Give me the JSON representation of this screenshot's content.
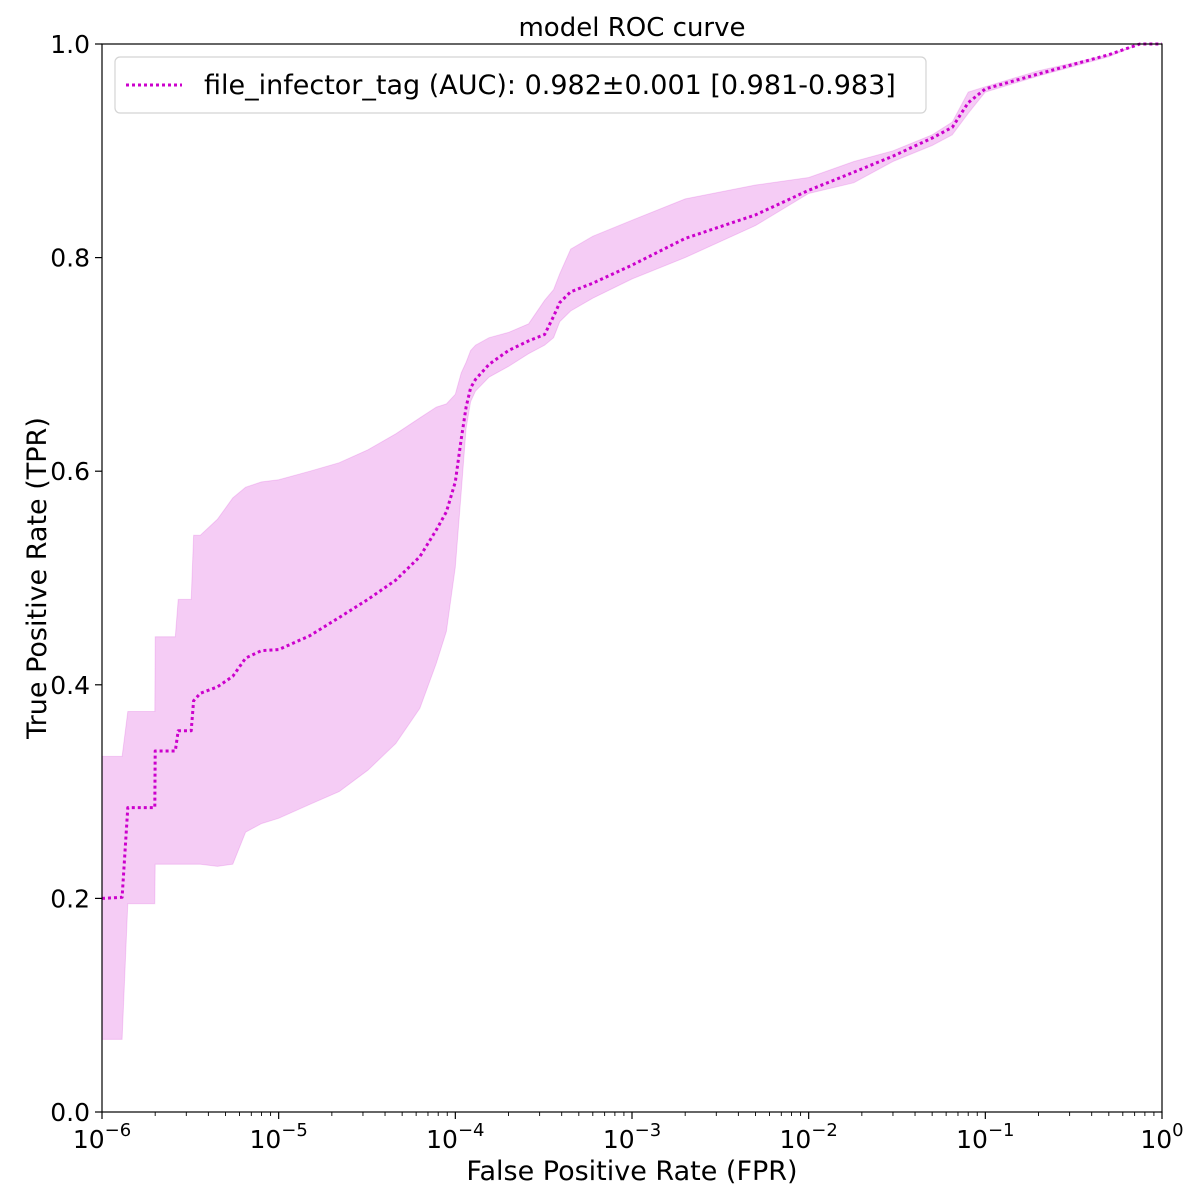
{
  "chart_data": {
    "type": "line",
    "title": "model ROC curve",
    "xlabel": "False Positive Rate (FPR)",
    "ylabel": "True Positive Rate (TPR)",
    "xscale": "log",
    "xlim": [
      1e-06,
      1
    ],
    "ylim": [
      0,
      1
    ],
    "grid": false,
    "legend_position": "upper-left",
    "x_ticks": [
      {
        "value": 1e-06,
        "base": "10",
        "exp": "−6"
      },
      {
        "value": 1e-05,
        "base": "10",
        "exp": "−5"
      },
      {
        "value": 0.0001,
        "base": "10",
        "exp": "−4"
      },
      {
        "value": 0.001,
        "base": "10",
        "exp": "−3"
      },
      {
        "value": 0.01,
        "base": "10",
        "exp": "−2"
      },
      {
        "value": 0.1,
        "base": "10",
        "exp": "−1"
      },
      {
        "value": 1,
        "base": "10",
        "exp": "0"
      }
    ],
    "y_ticks": [
      "0.0",
      "0.2",
      "0.4",
      "0.6",
      "0.8",
      "1.0"
    ],
    "series": [
      {
        "name": "file_infector_tag (AUC): 0.982±0.001 [0.981-0.983]",
        "color": "#cc00cc",
        "band_color": "#cc00cc",
        "line_style": "dotted",
        "x": [
          1e-06,
          1.3e-06,
          1.4e-06,
          1.99e-06,
          2e-06,
          2.6e-06,
          2.7e-06,
          3.2e-06,
          3.3e-06,
          3.6e-06,
          4.5e-06,
          5.5e-06,
          6.5e-06,
          8e-06,
          1e-05,
          1.5e-05,
          2.2e-05,
          3.2e-05,
          4.6e-05,
          6.3e-05,
          7.8e-05,
          8.9e-05,
          0.0001,
          0.000108,
          0.000115,
          0.000122,
          0.00013,
          0.000155,
          0.0002,
          0.00026,
          0.00032,
          0.00036,
          0.00039,
          0.00045,
          0.0006,
          0.001,
          0.002,
          0.005,
          0.01,
          0.018,
          0.03,
          0.05,
          0.065,
          0.08,
          0.1,
          0.2,
          0.5,
          0.75,
          1
        ],
        "y": [
          0.2,
          0.201,
          0.285,
          0.285,
          0.338,
          0.338,
          0.357,
          0.357,
          0.385,
          0.392,
          0.398,
          0.408,
          0.425,
          0.432,
          0.433,
          0.446,
          0.463,
          0.48,
          0.498,
          0.52,
          0.545,
          0.562,
          0.59,
          0.63,
          0.66,
          0.678,
          0.686,
          0.7,
          0.713,
          0.722,
          0.728,
          0.745,
          0.758,
          0.768,
          0.776,
          0.793,
          0.818,
          0.84,
          0.863,
          0.88,
          0.895,
          0.912,
          0.922,
          0.945,
          0.958,
          0.972,
          0.99,
          1.0,
          1.0
        ],
        "band_upper": [
          0.333,
          0.333,
          0.375,
          0.375,
          0.445,
          0.445,
          0.48,
          0.48,
          0.54,
          0.54,
          0.555,
          0.575,
          0.585,
          0.59,
          0.592,
          0.6,
          0.608,
          0.62,
          0.635,
          0.65,
          0.66,
          0.663,
          0.672,
          0.692,
          0.702,
          0.713,
          0.718,
          0.725,
          0.73,
          0.738,
          0.76,
          0.77,
          0.785,
          0.808,
          0.82,
          0.835,
          0.855,
          0.868,
          0.875,
          0.89,
          0.9,
          0.915,
          0.927,
          0.955,
          0.96,
          0.975,
          0.99,
          1.0,
          1.0
        ],
        "band_lower": [
          0.068,
          0.068,
          0.195,
          0.195,
          0.232,
          0.232,
          0.232,
          0.232,
          0.232,
          0.232,
          0.23,
          0.232,
          0.262,
          0.27,
          0.275,
          0.288,
          0.3,
          0.32,
          0.345,
          0.378,
          0.42,
          0.45,
          0.51,
          0.58,
          0.64,
          0.665,
          0.675,
          0.688,
          0.698,
          0.71,
          0.718,
          0.725,
          0.74,
          0.75,
          0.762,
          0.78,
          0.8,
          0.83,
          0.86,
          0.87,
          0.89,
          0.905,
          0.915,
          0.935,
          0.955,
          0.97,
          0.988,
          1.0,
          1.0
        ]
      }
    ]
  }
}
